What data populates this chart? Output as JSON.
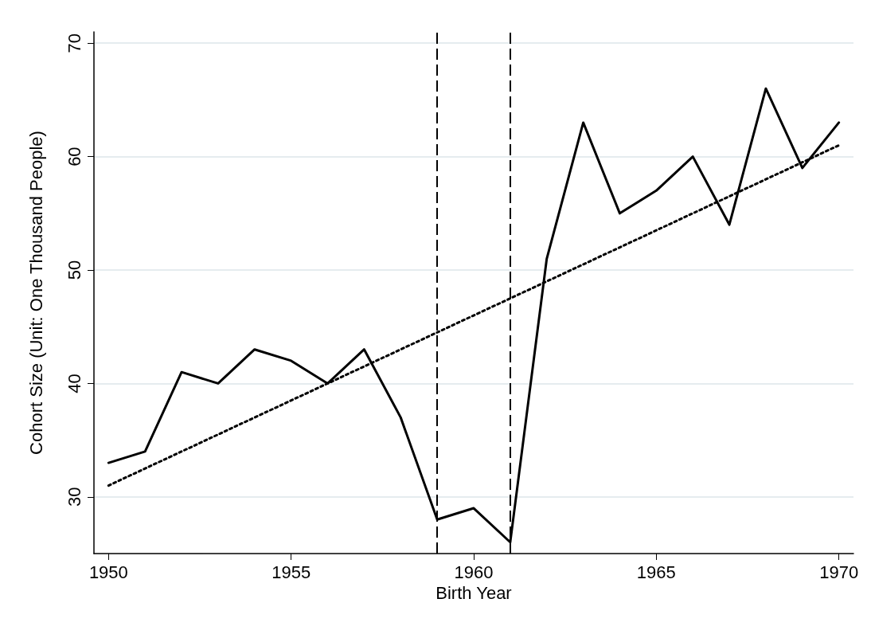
{
  "chart_data": {
    "type": "line",
    "xlabel": "Birth Year",
    "ylabel": "Cohort Size (Unit: One Thousand People)",
    "x": [
      1950,
      1951,
      1952,
      1953,
      1954,
      1955,
      1956,
      1957,
      1958,
      1959,
      1960,
      1961,
      1962,
      1963,
      1964,
      1965,
      1966,
      1967,
      1968,
      1969,
      1970
    ],
    "series": [
      {
        "color": "#000000",
        "values": [
          33,
          34,
          41,
          40,
          43,
          42,
          40,
          43,
          37,
          28,
          29,
          26,
          51,
          63,
          55,
          57,
          60,
          54,
          66,
          59,
          63
        ]
      },
      {
        "type": "line",
        "color": "#000000",
        "line_style": "dotted",
        "x": [
          1950,
          1970
        ],
        "values": [
          31,
          61
        ]
      }
    ],
    "xlim": [
      1949.6,
      1970.4
    ],
    "xticks": [
      1950,
      1955,
      1960,
      1965,
      1970
    ],
    "ylim": [
      25,
      71
    ],
    "yticks": [
      30,
      40,
      50,
      60,
      70
    ],
    "grid": "y",
    "marker": "none",
    "line_style": "solid",
    "ref_lines": [
      {
        "axis": "x",
        "value": 1959,
        "line_style": "dashed",
        "color": "#000000"
      },
      {
        "axis": "x",
        "value": 1961,
        "line_style": "dashed",
        "color": "#000000"
      }
    ]
  }
}
